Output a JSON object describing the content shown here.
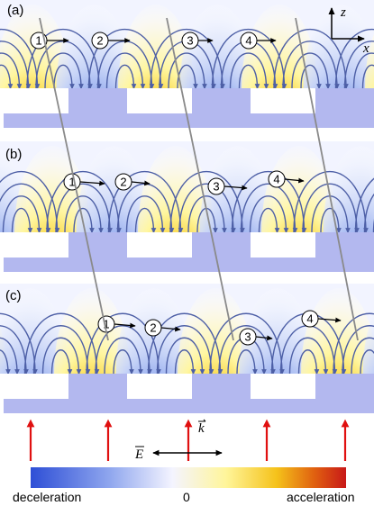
{
  "panels": [
    {
      "label": "(a)",
      "markers": [
        "1",
        "2",
        "3",
        "4"
      ]
    },
    {
      "label": "(b)",
      "markers": [
        "1",
        "2",
        "3",
        "4"
      ]
    },
    {
      "label": "(c)",
      "markers": [
        "1",
        "2",
        "3",
        "4"
      ]
    }
  ],
  "axes": {
    "z_label": "z",
    "x_label": "x"
  },
  "vectors": {
    "k_label": "k",
    "E_label": "E"
  },
  "colorbar": {
    "left_label": "deceleration",
    "center_label": "0",
    "right_label": "acceleration",
    "colors": [
      "#2e4fd6",
      "#8fa6ee",
      "#f4f4ff",
      "#fff59a",
      "#f5c21a",
      "#e06010",
      "#c81818"
    ]
  },
  "colors": {
    "substrate": "#b3b8ef",
    "field_line": "#4d5fa6",
    "tracer_line": "#8a8a8a",
    "arrow_red": "#e01010"
  }
}
